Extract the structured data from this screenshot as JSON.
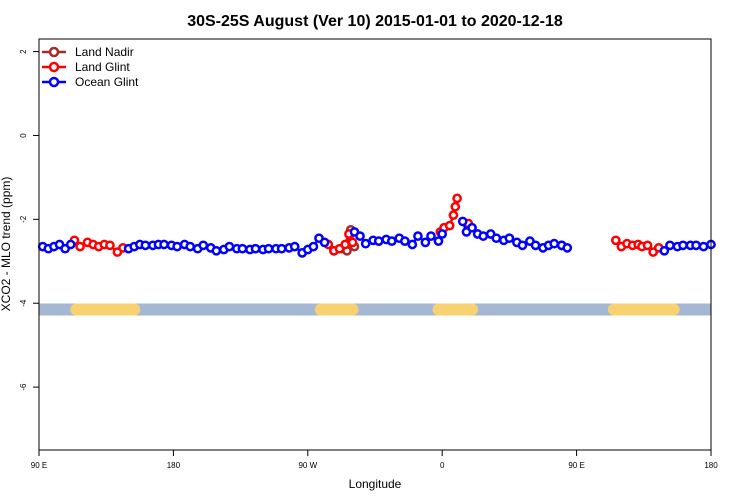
{
  "chart_data": {
    "type": "line",
    "title": "30S-25S August (Ver 10)   2015-01-01 to 2020-12-18",
    "xlabel": "Longitude",
    "ylabel": "XCO2 - MLO trend (ppm)",
    "xlim": [
      90,
      450
    ],
    "ylim": [
      -7.5,
      2.3
    ],
    "xticks": [
      {
        "value": 90,
        "label": "90 E"
      },
      {
        "value": 162,
        "label": "180"
      },
      {
        "value": 234,
        "label": "90 W"
      },
      {
        "value": 306,
        "label": "0"
      },
      {
        "value": 378,
        "label": "90 E"
      },
      {
        "value": 450,
        "label": "180"
      }
    ],
    "yticks": [
      {
        "value": 2,
        "label": "2"
      },
      {
        "value": 0,
        "label": "0"
      },
      {
        "value": -2,
        "label": "-2"
      },
      {
        "value": -4,
        "label": "-4"
      },
      {
        "value": -6,
        "label": "-6"
      }
    ],
    "legend_position": "top-left",
    "land_mask": {
      "y": -4.15,
      "ocean_color": "#a5b8d3",
      "land_color": "#f8d270",
      "land_segments": [
        [
          110,
          141
        ],
        [
          241,
          258
        ],
        [
          304,
          318
        ],
        [
          320,
          322
        ],
        [
          398,
          430
        ]
      ]
    },
    "series": [
      {
        "name": "Land Nadir",
        "color": "#a52a2a",
        "x": [
          248,
          252,
          255,
          257,
          259
        ],
        "y": [
          -2.75,
          -2.7,
          -2.75,
          -2.25,
          -2.65
        ]
      },
      {
        "name": "Land Glint",
        "color": "#ff0000",
        "segments": [
          {
            "x": [
              109,
              112,
              116,
              119,
              122,
              125,
              128,
              132,
              135
            ],
            "y": [
              -2.5,
              -2.65,
              -2.55,
              -2.6,
              -2.65,
              -2.6,
              -2.62,
              -2.78,
              -2.68
            ]
          },
          {
            "x": [
              245,
              248,
              251,
              254,
              256,
              258
            ],
            "y": [
              -2.6,
              -2.75,
              -2.7,
              -2.6,
              -2.35,
              -2.55
            ]
          },
          {
            "x": [
              305,
              307,
              310,
              312,
              313,
              314
            ],
            "y": [
              -2.3,
              -2.2,
              -2.15,
              -1.9,
              -1.7,
              -1.5
            ]
          },
          {
            "x": [
              320
            ],
            "y": [
              -2.1
            ]
          },
          {
            "x": [
              399,
              402,
              405,
              408,
              411,
              413,
              416,
              419,
              422
            ],
            "y": [
              -2.5,
              -2.65,
              -2.58,
              -2.62,
              -2.6,
              -2.65,
              -2.62,
              -2.78,
              -2.68
            ]
          }
        ]
      },
      {
        "name": "Ocean Glint",
        "color": "#0000ff",
        "segments": [
          {
            "x": [
              92,
              95,
              98,
              101,
              104,
              107
            ],
            "y": [
              -2.65,
              -2.7,
              -2.65,
              -2.6,
              -2.7,
              -2.6
            ]
          },
          {
            "x": [
              138,
              141,
              144,
              147,
              151,
              154,
              157,
              161,
              164,
              168,
              171,
              175,
              178,
              182,
              185,
              189,
              192,
              196,
              199,
              203,
              206,
              210,
              213,
              217,
              220,
              224,
              227,
              231,
              234,
              237,
              240,
              243
            ],
            "y": [
              -2.7,
              -2.65,
              -2.6,
              -2.62,
              -2.62,
              -2.6,
              -2.6,
              -2.62,
              -2.65,
              -2.6,
              -2.65,
              -2.7,
              -2.62,
              -2.68,
              -2.75,
              -2.72,
              -2.65,
              -2.7,
              -2.7,
              -2.72,
              -2.7,
              -2.72,
              -2.7,
              -2.7,
              -2.7,
              -2.68,
              -2.65,
              -2.8,
              -2.72,
              -2.65,
              -2.45,
              -2.55
            ]
          },
          {
            "x": [
              259,
              262,
              265,
              269,
              272,
              276,
              279,
              283,
              286,
              290,
              293,
              297,
              300,
              304,
              306
            ],
            "y": [
              -2.3,
              -2.4,
              -2.58,
              -2.5,
              -2.52,
              -2.48,
              -2.52,
              -2.45,
              -2.52,
              -2.6,
              -2.4,
              -2.55,
              -2.4,
              -2.52,
              -2.35
            ]
          },
          {
            "x": [
              317,
              319,
              322,
              325,
              328,
              332,
              335,
              339,
              342,
              346,
              349,
              353,
              356,
              360,
              363,
              366,
              370
            ],
            "y": [
              -2.05,
              -2.3,
              -2.2,
              -2.35,
              -2.4,
              -2.35,
              -2.45,
              -2.5,
              -2.45,
              -2.55,
              -2.62,
              -2.52,
              -2.62,
              -2.68,
              -2.62,
              -2.58,
              -2.62
            ]
          },
          {
            "x": [
              370,
              373
            ],
            "y": [
              -2.62,
              -2.68
            ]
          },
          {
            "x": [
              425,
              428,
              432,
              435,
              439,
              442,
              446,
              450
            ],
            "y": [
              -2.75,
              -2.62,
              -2.65,
              -2.62,
              -2.62,
              -2.62,
              -2.65,
              -2.6
            ]
          }
        ]
      }
    ]
  }
}
